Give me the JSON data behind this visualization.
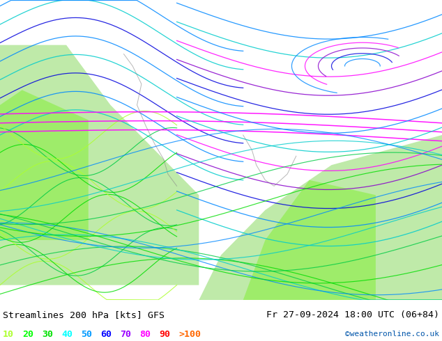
{
  "title_left": "Streamlines 200 hPa [kts] GFS",
  "title_right": "Fr 27-09-2024 18:00 UTC (06+84)",
  "credit": "©weatheronline.co.uk",
  "legend_labels": [
    "10",
    "20",
    "30",
    "40",
    "50",
    "60",
    "70",
    "80",
    "90",
    ">100"
  ],
  "legend_colors": [
    "#adff2f",
    "#00ff00",
    "#00e000",
    "#00ffff",
    "#0099ff",
    "#0000ff",
    "#9900ff",
    "#ff00ff",
    "#ff0000",
    "#ff6600"
  ],
  "bg_color": "#e8e8e8",
  "land_color_low": "#90ee90",
  "land_color_high": "#c8f0a0",
  "streamline_colors": {
    "10": "#adff2f",
    "20": "#00ff00",
    "30": "#00cc00",
    "40": "#00ffff",
    "50": "#0088ff",
    "60": "#0000ff",
    "70": "#8800ff",
    "80": "#ff00ff",
    "90": "#ff0000",
    "100": "#ff6600"
  },
  "figsize": [
    6.34,
    4.9
  ],
  "dpi": 100
}
